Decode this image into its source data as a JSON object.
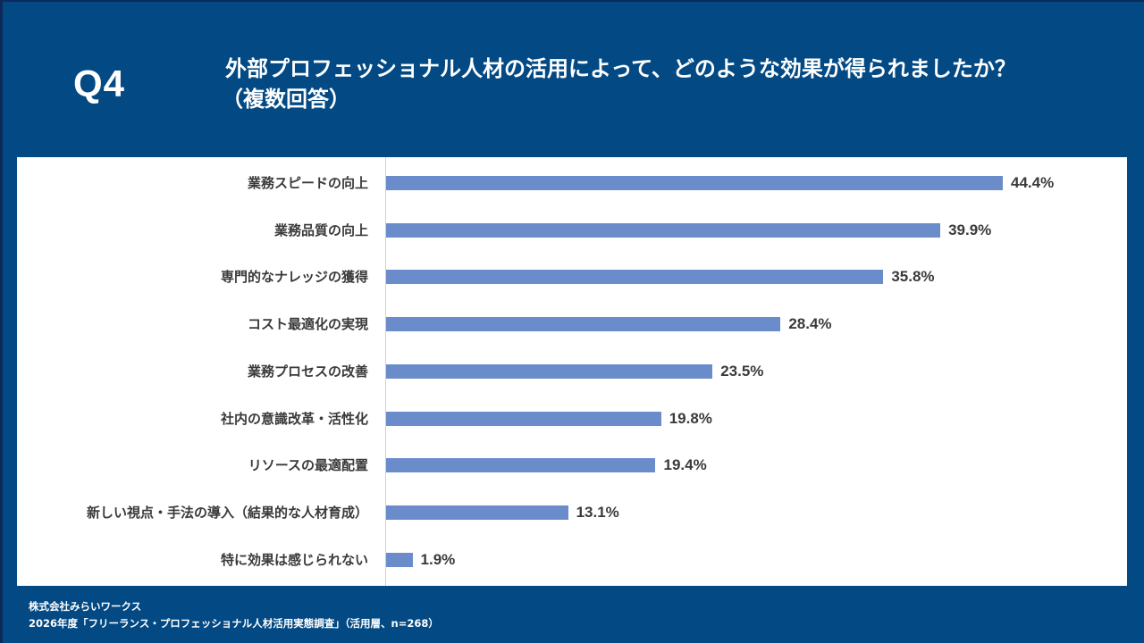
{
  "header": {
    "question_number": "Q4",
    "title_line1": "外部プロフェッショナル人材の活用によって、どのような効果が得られましたか？",
    "title_line2": "（複数回答）"
  },
  "colors": {
    "background": "#034983",
    "panel": "#ffffff",
    "bar": "#6b8ccb",
    "text": "#3a3a3a"
  },
  "chart_data": {
    "type": "bar",
    "orientation": "horizontal",
    "title": "外部プロフェッショナル人材の活用によって、どのような効果が得られましたか？（複数回答）",
    "xlabel": "",
    "ylabel": "",
    "unit": "%",
    "xlim": [
      0,
      50
    ],
    "grid": false,
    "legend": "none",
    "categories": [
      "業務スピードの向上",
      "業務品質の向上",
      "専門的なナレッジの獲得",
      "コスト最適化の実現",
      "業務プロセスの改善",
      "社内の意識改革・活性化",
      "リソースの最適配置",
      "新しい視点・手法の導入（結果的な人材育成）",
      "特に効果は感じられない"
    ],
    "values": [
      44.4,
      39.9,
      35.8,
      28.4,
      23.5,
      19.8,
      19.4,
      13.1,
      1.9
    ],
    "value_labels": [
      "44.4%",
      "39.9%",
      "35.8%",
      "28.4%",
      "23.5%",
      "19.8%",
      "19.4%",
      "13.1%",
      "1.9%"
    ]
  },
  "footer": {
    "company": "株式会社みらいワークス",
    "source": "2026年度「フリーランス・プロフェッショナル人材活用実態調査」（活用層、n=268）"
  }
}
